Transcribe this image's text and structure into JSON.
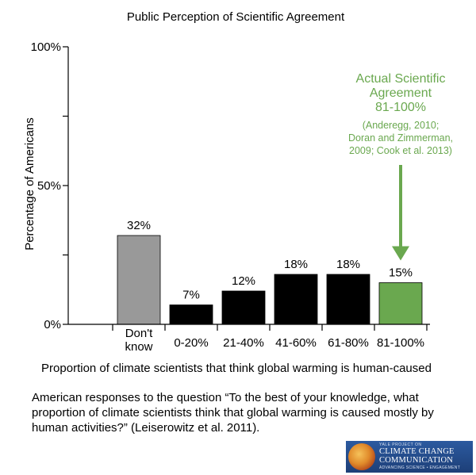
{
  "chart_data": {
    "type": "bar",
    "title": "Public Perception of Scientific Agreement",
    "xlabel": "Proportion of climate scientists that think global warming is human-caused",
    "ylabel": "Percentage of Americans",
    "ylim": [
      0,
      100
    ],
    "yticks": [
      0,
      50,
      100
    ],
    "ytick_labels": [
      "0%",
      "50%",
      "100%"
    ],
    "minor_yticks": [
      25,
      75
    ],
    "categories": [
      "Don't know",
      "0-20%",
      "21-40%",
      "41-60%",
      "61-80%",
      "81-100%"
    ],
    "category_lines": [
      [
        "Don't",
        "know"
      ],
      [
        "0-20%"
      ],
      [
        "21-40%"
      ],
      [
        "41-60%"
      ],
      [
        "61-80%"
      ],
      [
        "81-100%"
      ]
    ],
    "values": [
      32,
      7,
      12,
      18,
      18,
      15
    ],
    "value_labels": [
      "32%",
      "7%",
      "12%",
      "18%",
      "18%",
      "15%"
    ],
    "bar_colors": [
      "#999999",
      "#000000",
      "#000000",
      "#000000",
      "#000000",
      "#6aa84f"
    ],
    "grid": false,
    "annotation": {
      "heading_lines": [
        "Actual Scientific",
        "Agreement",
        "81-100%"
      ],
      "citation_lines": [
        "(Anderegg, 2010;",
        "Doran and Zimmerman,",
        "2009; Cook et al. 2013)"
      ],
      "color": "#6aa84f",
      "points_to": "81-100%"
    }
  },
  "caption": "American responses to the question “To the best of your knowledge, what proportion of climate scientists think that global warming is caused mostly by human activities?” (Leiserowitz et al. 2011).",
  "logo": {
    "small": "YALE PROJECT ON",
    "line1": "CLIMATE CHANGE",
    "line2": "COMMUNICATION",
    "tagline": "ADVANCING SCIENCE • ENGAGEMENT"
  }
}
